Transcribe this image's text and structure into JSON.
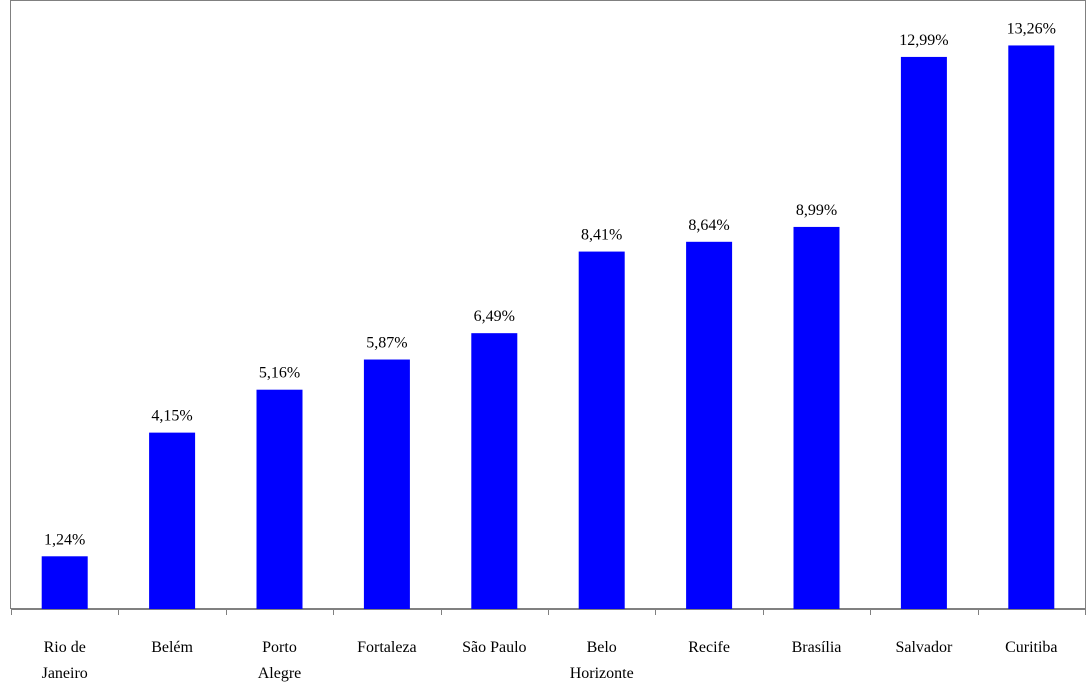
{
  "chart_data": {
    "type": "bar",
    "title": "",
    "xlabel": "",
    "ylabel": "",
    "categories": [
      [
        "Rio de",
        "Janeiro"
      ],
      [
        "Belém"
      ],
      [
        "Porto",
        "Alegre"
      ],
      [
        "Fortaleza"
      ],
      [
        "São Paulo"
      ],
      [
        "Belo",
        "Horizonte"
      ],
      [
        "Recife"
      ],
      [
        "Brasília"
      ],
      [
        "Salvador"
      ],
      [
        "Curitiba"
      ]
    ],
    "values": [
      1.24,
      4.15,
      5.16,
      5.87,
      6.49,
      8.41,
      8.64,
      8.99,
      12.99,
      13.26
    ],
    "data_labels": [
      "1,24%",
      "4,15%",
      "5,16%",
      "5,87%",
      "6,49%",
      "8,41%",
      "8,64%",
      "8,99%",
      "12,99%",
      "13,26%"
    ],
    "ylim": [
      0,
      14
    ],
    "grid": false,
    "legend": "none",
    "bar_color": "#0000ff",
    "axis_color": "#808080"
  }
}
